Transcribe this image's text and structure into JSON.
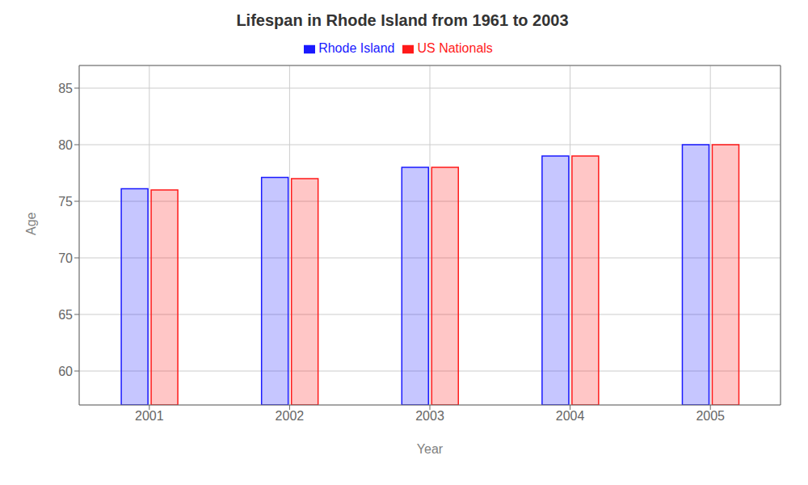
{
  "chart_data": {
    "type": "bar",
    "title": "Lifespan in Rhode Island from 1961 to 2003",
    "x_label": "Year",
    "y_label": "Age",
    "categories": [
      "2001",
      "2002",
      "2003",
      "2004",
      "2005"
    ],
    "series": [
      {
        "name": "Rhode Island",
        "color": "#1a1aff",
        "values": [
          76.1,
          77.1,
          78.0,
          79.0,
          80.0
        ]
      },
      {
        "name": "US Nationals",
        "color": "#ff1a1a",
        "values": [
          76.0,
          77.0,
          78.0,
          79.0,
          80.0
        ]
      }
    ],
    "ylim": [
      57,
      87
    ],
    "yticks": [
      60,
      65,
      70,
      75,
      80,
      85
    ],
    "grid": true,
    "legend": "top"
  }
}
